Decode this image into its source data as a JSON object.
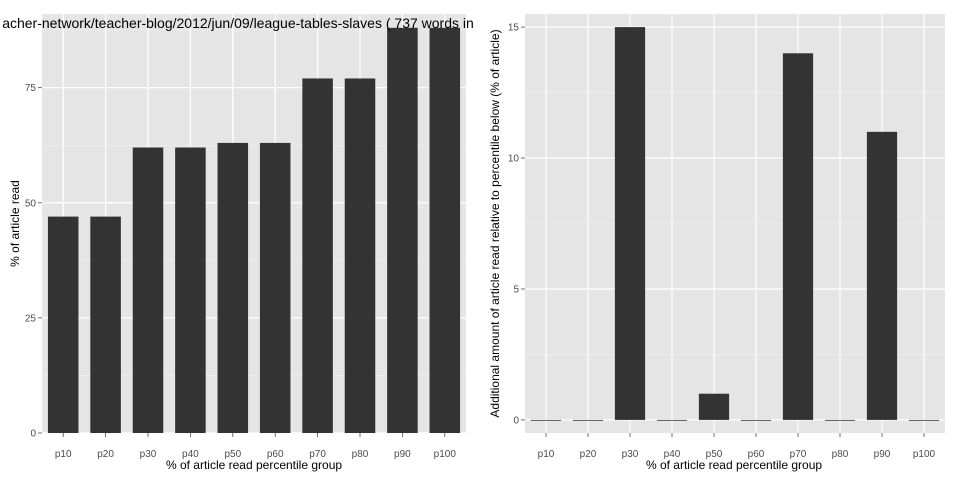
{
  "chart_data": [
    {
      "type": "bar",
      "title": "acher-network/teacher-blog/2012/jun/09/league-tables-slaves ( 737 words in",
      "xlabel": "% of article read percentile group",
      "ylabel": "% of article read",
      "categories": [
        "p10",
        "p20",
        "p30",
        "p40",
        "p50",
        "p60",
        "p70",
        "p80",
        "p90",
        "p100"
      ],
      "values": [
        47,
        47,
        62,
        62,
        63,
        63,
        77,
        77,
        88,
        88
      ],
      "ylim": [
        0,
        91
      ],
      "yticks": [
        0,
        25,
        50,
        75
      ],
      "grid": true,
      "bar_color": "#333333",
      "panel_color": "#e5e5e5"
    },
    {
      "type": "bar",
      "title": "",
      "xlabel": "% of article read percentile group",
      "ylabel": "Additional amount of article read relative to percentile below (% of article)",
      "categories": [
        "p10",
        "p20",
        "p30",
        "p40",
        "p50",
        "p60",
        "p70",
        "p80",
        "p90",
        "p100"
      ],
      "values": [
        0,
        0,
        15,
        0,
        1,
        0,
        14,
        0,
        11,
        0
      ],
      "ylim": [
        -0.5,
        15.5
      ],
      "yticks": [
        0,
        5,
        10,
        15
      ],
      "grid": true,
      "bar_color": "#333333",
      "panel_color": "#e5e5e5"
    }
  ]
}
